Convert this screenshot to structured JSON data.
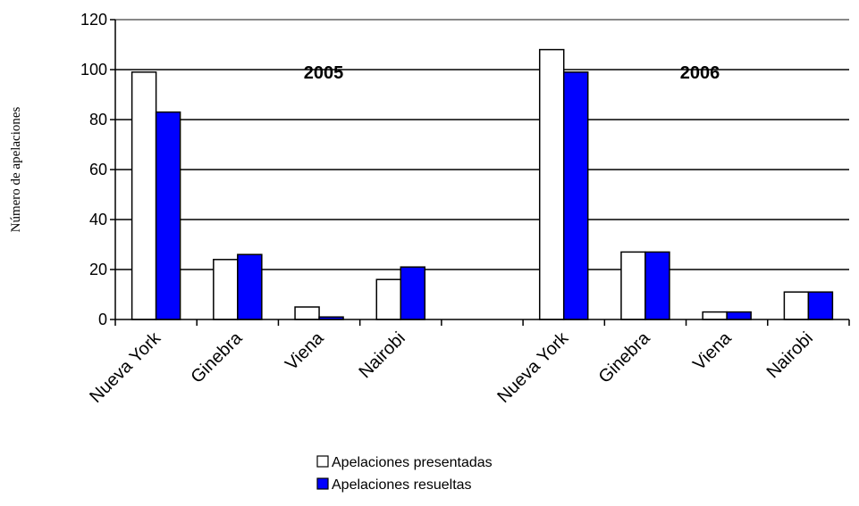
{
  "chart_data": {
    "type": "bar",
    "categories": [
      "Nueva York",
      "Ginebra",
      "Viena",
      "Nairobi",
      "Nueva York",
      "Ginebra",
      "Viena",
      "Nairobi"
    ],
    "groups": [
      {
        "label": "2005",
        "category_indices": [
          0,
          1,
          2,
          3
        ]
      },
      {
        "label": "2006",
        "category_indices": [
          4,
          5,
          6,
          7
        ]
      }
    ],
    "series": [
      {
        "name": "Apelaciones presentadas",
        "color": "#ffffff",
        "values": [
          99,
          24,
          5,
          16,
          108,
          27,
          3,
          11
        ]
      },
      {
        "name": "Apelaciones resueltas",
        "color": "#0000ff",
        "values": [
          83,
          26,
          1,
          21,
          99,
          27,
          3,
          11
        ]
      }
    ],
    "ylabel": "Número de apelaciones",
    "xlabel": "",
    "ylim": [
      0,
      120
    ],
    "yticks": [
      0,
      20,
      40,
      60,
      80,
      100,
      120
    ],
    "grid": true,
    "legend_position": "bottom-center"
  }
}
